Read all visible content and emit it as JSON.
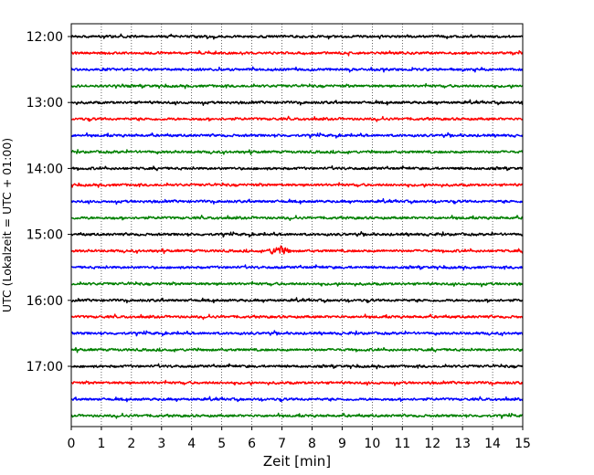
{
  "chart_data": {
    "type": "line",
    "title": "",
    "xlabel": "Zeit  [min]",
    "ylabel": "UTC (Lokalzeit = UTC + 01:00)",
    "xlim": [
      0,
      15
    ],
    "x_ticks": [
      0,
      1,
      2,
      3,
      4,
      5,
      6,
      7,
      8,
      9,
      10,
      11,
      12,
      13,
      14,
      15
    ],
    "y_tick_labels": [
      "12:00",
      "13:00",
      "14:00",
      "15:00",
      "16:00",
      "17:00"
    ],
    "grid": "vertical dotted",
    "trace_colors": [
      "#000000",
      "#ff0000",
      "#0000ff",
      "#008000"
    ],
    "rows": [
      {
        "start": "12:00",
        "color": "#000000"
      },
      {
        "start": "12:15",
        "color": "#ff0000"
      },
      {
        "start": "12:30",
        "color": "#0000ff"
      },
      {
        "start": "12:45",
        "color": "#008000"
      },
      {
        "start": "13:00",
        "color": "#000000"
      },
      {
        "start": "13:15",
        "color": "#ff0000"
      },
      {
        "start": "13:30",
        "color": "#0000ff"
      },
      {
        "start": "13:45",
        "color": "#008000"
      },
      {
        "start": "14:00",
        "color": "#000000"
      },
      {
        "start": "14:15",
        "color": "#ff0000"
      },
      {
        "start": "14:30",
        "color": "#0000ff"
      },
      {
        "start": "14:45",
        "color": "#008000"
      },
      {
        "start": "15:00",
        "color": "#000000"
      },
      {
        "start": "15:15",
        "color": "#ff0000",
        "event_min": 6.9
      },
      {
        "start": "15:30",
        "color": "#0000ff"
      },
      {
        "start": "15:45",
        "color": "#008000"
      },
      {
        "start": "16:00",
        "color": "#000000"
      },
      {
        "start": "16:15",
        "color": "#ff0000"
      },
      {
        "start": "16:30",
        "color": "#0000ff"
      },
      {
        "start": "16:45",
        "color": "#008000"
      },
      {
        "start": "17:00",
        "color": "#000000"
      },
      {
        "start": "17:15",
        "color": "#ff0000"
      },
      {
        "start": "17:30",
        "color": "#0000ff"
      },
      {
        "start": "17:45",
        "color": "#008000"
      }
    ]
  }
}
